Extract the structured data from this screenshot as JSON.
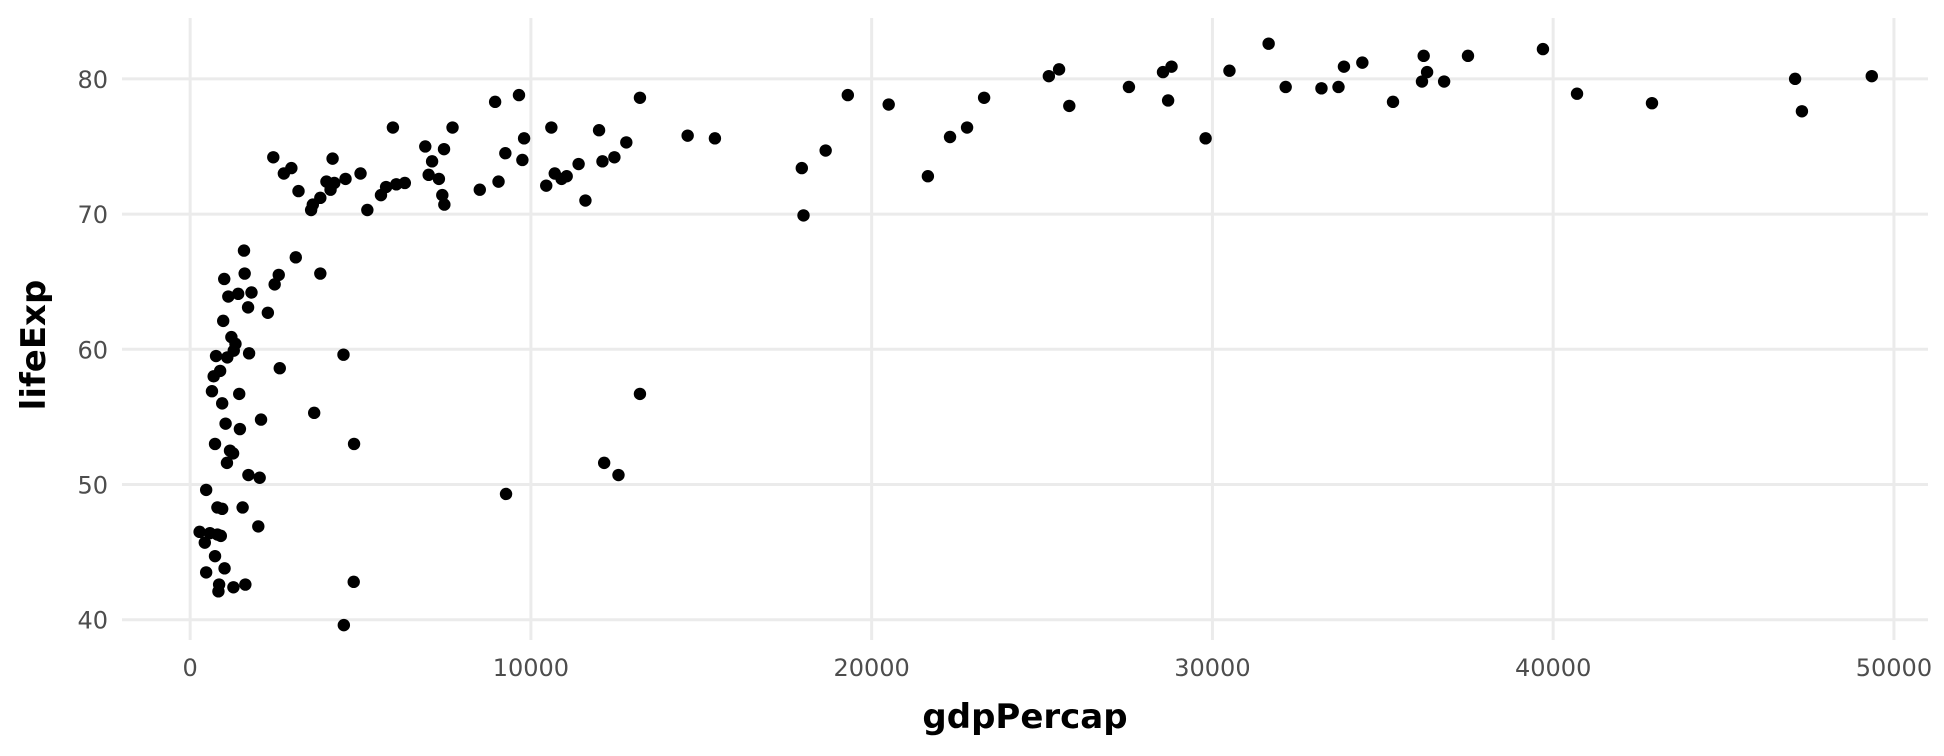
{
  "chart_data": {
    "type": "scatter",
    "title": "",
    "xlabel": "gdpPercap",
    "ylabel": "lifeExp",
    "xlim": [
      -2000,
      51000
    ],
    "ylim": [
      38.5,
      84.5
    ],
    "x_ticks": [
      0,
      10000,
      20000,
      30000,
      40000,
      50000
    ],
    "y_ticks": [
      40,
      50,
      60,
      70,
      80
    ],
    "grid": true,
    "legend": "none",
    "point_color": "#000000",
    "series": [
      {
        "points": [
          [
            277,
            46.5
          ],
          [
            430,
            45.7
          ],
          [
            470,
            43.5
          ],
          [
            470,
            49.6
          ],
          [
            580,
            46.4
          ],
          [
            640,
            56.9
          ],
          [
            690,
            58.0
          ],
          [
            730,
            44.7
          ],
          [
            730,
            53.0
          ],
          [
            760,
            59.5
          ],
          [
            800,
            48.3
          ],
          [
            800,
            46.3
          ],
          [
            830,
            42.1
          ],
          [
            850,
            42.6
          ],
          [
            880,
            58.4
          ],
          [
            900,
            46.2
          ],
          [
            940,
            56.0
          ],
          [
            940,
            48.2
          ],
          [
            970,
            62.1
          ],
          [
            1000,
            65.2
          ],
          [
            1010,
            43.8
          ],
          [
            1040,
            54.5
          ],
          [
            1080,
            51.6
          ],
          [
            1090,
            59.4
          ],
          [
            1120,
            63.9
          ],
          [
            1170,
            52.5
          ],
          [
            1210,
            60.9
          ],
          [
            1260,
            52.3
          ],
          [
            1270,
            42.4
          ],
          [
            1280,
            59.9
          ],
          [
            1330,
            60.4
          ],
          [
            1410,
            64.1
          ],
          [
            1440,
            56.7
          ],
          [
            1460,
            54.1
          ],
          [
            1540,
            48.3
          ],
          [
            1580,
            67.3
          ],
          [
            1600,
            65.6
          ],
          [
            1620,
            42.6
          ],
          [
            1700,
            63.1
          ],
          [
            1710,
            50.7
          ],
          [
            1730,
            59.7
          ],
          [
            1800,
            64.2
          ],
          [
            2000,
            46.9
          ],
          [
            2040,
            50.5
          ],
          [
            2080,
            54.8
          ],
          [
            2280,
            62.7
          ],
          [
            2440,
            74.2
          ],
          [
            2480,
            64.8
          ],
          [
            2600,
            65.5
          ],
          [
            2630,
            58.6
          ],
          [
            2750,
            73.0
          ],
          [
            2970,
            73.4
          ],
          [
            3100,
            66.8
          ],
          [
            3180,
            71.7
          ],
          [
            3550,
            70.3
          ],
          [
            3600,
            70.7
          ],
          [
            3640,
            55.3
          ],
          [
            3820,
            65.6
          ],
          [
            3820,
            71.2
          ],
          [
            4000,
            72.4
          ],
          [
            4120,
            71.8
          ],
          [
            4180,
            74.1
          ],
          [
            4230,
            72.3
          ],
          [
            4500,
            59.6
          ],
          [
            4510,
            39.6
          ],
          [
            4560,
            72.6
          ],
          [
            4800,
            42.8
          ],
          [
            4810,
            53.0
          ],
          [
            5000,
            73.0
          ],
          [
            5200,
            70.3
          ],
          [
            5600,
            71.4
          ],
          [
            5750,
            72.0
          ],
          [
            5950,
            76.4
          ],
          [
            6050,
            72.2
          ],
          [
            6300,
            72.3
          ],
          [
            6900,
            75.0
          ],
          [
            7000,
            72.9
          ],
          [
            7100,
            73.9
          ],
          [
            7300,
            72.6
          ],
          [
            7400,
            71.4
          ],
          [
            7450,
            74.8
          ],
          [
            7460,
            70.7
          ],
          [
            7700,
            76.4
          ],
          [
            8500,
            71.8
          ],
          [
            8950,
            78.3
          ],
          [
            9050,
            72.4
          ],
          [
            9250,
            74.5
          ],
          [
            9270,
            49.3
          ],
          [
            9650,
            78.8
          ],
          [
            9750,
            74.0
          ],
          [
            9800,
            75.6
          ],
          [
            10450,
            72.1
          ],
          [
            10600,
            76.4
          ],
          [
            10700,
            73.0
          ],
          [
            10900,
            72.6
          ],
          [
            11050,
            72.8
          ],
          [
            11400,
            73.7
          ],
          [
            11600,
            71.0
          ],
          [
            12000,
            76.2
          ],
          [
            12100,
            73.9
          ],
          [
            12150,
            51.6
          ],
          [
            12450,
            74.2
          ],
          [
            12570,
            50.7
          ],
          [
            12800,
            75.3
          ],
          [
            13200,
            78.6
          ],
          [
            13200,
            56.7
          ],
          [
            14600,
            75.8
          ],
          [
            15400,
            75.6
          ],
          [
            17950,
            73.4
          ],
          [
            18000,
            69.9
          ],
          [
            18650,
            74.7
          ],
          [
            19300,
            78.8
          ],
          [
            20500,
            78.1
          ],
          [
            21650,
            72.8
          ],
          [
            22300,
            75.7
          ],
          [
            22800,
            76.4
          ],
          [
            23300,
            78.6
          ],
          [
            25200,
            80.2
          ],
          [
            25500,
            80.7
          ],
          [
            25800,
            78.0
          ],
          [
            27550,
            79.4
          ],
          [
            28550,
            80.5
          ],
          [
            28700,
            78.4
          ],
          [
            28800,
            80.9
          ],
          [
            29800,
            75.6
          ],
          [
            30500,
            80.6
          ],
          [
            31650,
            82.6
          ],
          [
            32150,
            79.4
          ],
          [
            33200,
            79.3
          ],
          [
            33700,
            79.4
          ],
          [
            33860,
            80.9
          ],
          [
            34400,
            81.2
          ],
          [
            35300,
            78.3
          ],
          [
            36150,
            79.8
          ],
          [
            36200,
            81.7
          ],
          [
            36300,
            80.5
          ],
          [
            36800,
            79.8
          ],
          [
            37500,
            81.7
          ],
          [
            39700,
            82.2
          ],
          [
            40700,
            78.9
          ],
          [
            42900,
            78.2
          ],
          [
            47100,
            80.0
          ],
          [
            47300,
            77.6
          ],
          [
            49350,
            80.2
          ]
        ]
      }
    ]
  }
}
